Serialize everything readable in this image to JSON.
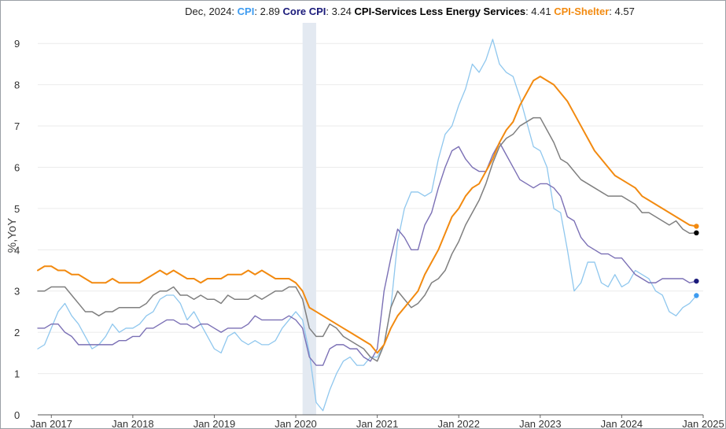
{
  "chart_data": {
    "type": "line",
    "header": {
      "date_label": "Dec, 2024:",
      "items": [
        {
          "name": "CPI",
          "value_text": "2.89",
          "color": "#3d9bf0"
        },
        {
          "name": "Core CPI",
          "value_text": "3.24",
          "color": "#1a1a7a"
        },
        {
          "name": "CPI-Services Less Energy Services",
          "value_text": "4.41",
          "color": "#000000"
        },
        {
          "name": "CPI-Shelter",
          "value_text": "4.57",
          "color": "#f28a10"
        }
      ]
    },
    "ylabel": "%,YoY",
    "ylim": [
      0,
      9.5
    ],
    "yticks": [
      0,
      1,
      2,
      3,
      4,
      5,
      6,
      7,
      8,
      9
    ],
    "xlim": [
      "2016-11",
      "2025-01"
    ],
    "xticks": [
      {
        "label": "Jan 2017",
        "date": "2017-01"
      },
      {
        "label": "Jan 2018",
        "date": "2018-01"
      },
      {
        "label": "Jan 2019",
        "date": "2019-01"
      },
      {
        "label": "Jan 2020",
        "date": "2020-01"
      },
      {
        "label": "Jan 2021",
        "date": "2021-01"
      },
      {
        "label": "Jan 2022",
        "date": "2022-01"
      },
      {
        "label": "Jan 2023",
        "date": "2023-01"
      },
      {
        "label": "Jan 2024",
        "date": "2024-01"
      },
      {
        "label": "Jan 2025",
        "date": "2025-01"
      }
    ],
    "recession_shading": {
      "start": "2020-02",
      "end": "2020-04",
      "color": "#e3e9f1"
    },
    "start_date": "2016-11",
    "series": [
      {
        "name": "CPI",
        "color": "#8fc7ee",
        "end_marker_color": "#3d9bf0",
        "stroke_width": 1.3,
        "values": [
          1.6,
          1.7,
          2.1,
          2.5,
          2.7,
          2.4,
          2.2,
          1.9,
          1.6,
          1.7,
          1.9,
          2.2,
          2.0,
          2.1,
          2.1,
          2.2,
          2.4,
          2.5,
          2.8,
          2.9,
          2.9,
          2.7,
          2.3,
          2.5,
          2.2,
          1.9,
          1.6,
          1.5,
          1.9,
          2.0,
          1.8,
          1.7,
          1.8,
          1.7,
          1.7,
          1.8,
          2.1,
          2.3,
          2.5,
          2.3,
          1.5,
          0.3,
          0.1,
          0.6,
          1.0,
          1.3,
          1.4,
          1.2,
          1.2,
          1.4,
          1.4,
          1.7,
          2.6,
          4.2,
          5.0,
          5.4,
          5.4,
          5.3,
          5.4,
          6.2,
          6.8,
          7.0,
          7.5,
          7.9,
          8.5,
          8.3,
          8.6,
          9.1,
          8.5,
          8.3,
          8.2,
          7.7,
          7.1,
          6.5,
          6.4,
          6.0,
          5.0,
          4.9,
          4.0,
          3.0,
          3.2,
          3.7,
          3.7,
          3.2,
          3.1,
          3.4,
          3.1,
          3.2,
          3.5,
          3.4,
          3.3,
          3.0,
          2.9,
          2.5,
          2.4,
          2.6,
          2.7,
          2.89
        ]
      },
      {
        "name": "Core CPI",
        "color": "#7b70b5",
        "end_marker_color": "#1a1a7a",
        "stroke_width": 1.4,
        "values": [
          2.1,
          2.1,
          2.2,
          2.2,
          2.0,
          1.9,
          1.7,
          1.7,
          1.7,
          1.7,
          1.7,
          1.7,
          1.8,
          1.8,
          1.9,
          1.9,
          2.1,
          2.1,
          2.2,
          2.3,
          2.3,
          2.2,
          2.2,
          2.1,
          2.2,
          2.2,
          2.1,
          2.0,
          2.1,
          2.1,
          2.1,
          2.2,
          2.4,
          2.3,
          2.3,
          2.3,
          2.3,
          2.4,
          2.3,
          2.1,
          1.4,
          1.2,
          1.2,
          1.6,
          1.7,
          1.7,
          1.6,
          1.6,
          1.4,
          1.3,
          1.6,
          3.0,
          3.8,
          4.5,
          4.3,
          4.0,
          4.0,
          4.6,
          4.9,
          5.5,
          6.0,
          6.4,
          6.5,
          6.2,
          6.0,
          5.9,
          5.9,
          6.3,
          6.6,
          6.3,
          6.0,
          5.7,
          5.6,
          5.5,
          5.6,
          5.6,
          5.5,
          5.3,
          4.8,
          4.7,
          4.3,
          4.1,
          4.0,
          3.9,
          3.9,
          3.8,
          3.8,
          3.6,
          3.4,
          3.3,
          3.2,
          3.2,
          3.3,
          3.3,
          3.3,
          3.3,
          3.2,
          3.24
        ]
      },
      {
        "name": "CPI-Services Less Energy Services",
        "color": "#7f7f7f",
        "end_marker_color": "#000000",
        "stroke_width": 1.5,
        "values": [
          3.0,
          3.0,
          3.1,
          3.1,
          3.1,
          2.9,
          2.7,
          2.5,
          2.5,
          2.4,
          2.5,
          2.5,
          2.6,
          2.6,
          2.6,
          2.6,
          2.7,
          2.9,
          3.0,
          3.0,
          3.1,
          2.9,
          2.9,
          2.8,
          2.9,
          2.8,
          2.8,
          2.7,
          2.9,
          2.8,
          2.8,
          2.8,
          2.9,
          2.8,
          2.9,
          3.0,
          3.0,
          3.1,
          3.1,
          2.8,
          2.1,
          1.9,
          1.9,
          2.2,
          2.1,
          1.9,
          1.8,
          1.7,
          1.6,
          1.4,
          1.3,
          1.7,
          2.6,
          3.0,
          2.8,
          2.6,
          2.7,
          2.9,
          3.2,
          3.3,
          3.5,
          3.9,
          4.2,
          4.6,
          4.9,
          5.2,
          5.6,
          6.1,
          6.5,
          6.7,
          6.8,
          7.0,
          7.1,
          7.2,
          7.2,
          6.9,
          6.6,
          6.2,
          6.1,
          5.9,
          5.7,
          5.6,
          5.5,
          5.4,
          5.3,
          5.3,
          5.3,
          5.2,
          5.1,
          4.9,
          4.9,
          4.8,
          4.7,
          4.6,
          4.7,
          4.5,
          4.4,
          4.41
        ]
      },
      {
        "name": "CPI-Shelter",
        "color": "#f28a10",
        "end_marker_color": "#f28a10",
        "stroke_width": 2.0,
        "values": [
          3.5,
          3.6,
          3.6,
          3.5,
          3.5,
          3.4,
          3.4,
          3.3,
          3.2,
          3.2,
          3.2,
          3.3,
          3.2,
          3.2,
          3.2,
          3.2,
          3.3,
          3.4,
          3.5,
          3.4,
          3.5,
          3.4,
          3.3,
          3.3,
          3.2,
          3.3,
          3.3,
          3.3,
          3.4,
          3.4,
          3.4,
          3.5,
          3.4,
          3.5,
          3.4,
          3.3,
          3.3,
          3.3,
          3.2,
          3.0,
          2.6,
          2.5,
          2.4,
          2.3,
          2.2,
          2.1,
          2.0,
          1.9,
          1.8,
          1.7,
          1.5,
          1.7,
          2.1,
          2.4,
          2.6,
          2.8,
          3.0,
          3.4,
          3.7,
          4.0,
          4.4,
          4.8,
          5.0,
          5.3,
          5.5,
          5.6,
          5.9,
          6.2,
          6.6,
          6.9,
          7.1,
          7.5,
          7.8,
          8.1,
          8.2,
          8.1,
          8.0,
          7.8,
          7.6,
          7.3,
          7.0,
          6.7,
          6.4,
          6.2,
          6.0,
          5.8,
          5.7,
          5.6,
          5.5,
          5.3,
          5.2,
          5.1,
          5.0,
          4.9,
          4.8,
          4.7,
          4.6,
          4.57
        ]
      }
    ]
  }
}
